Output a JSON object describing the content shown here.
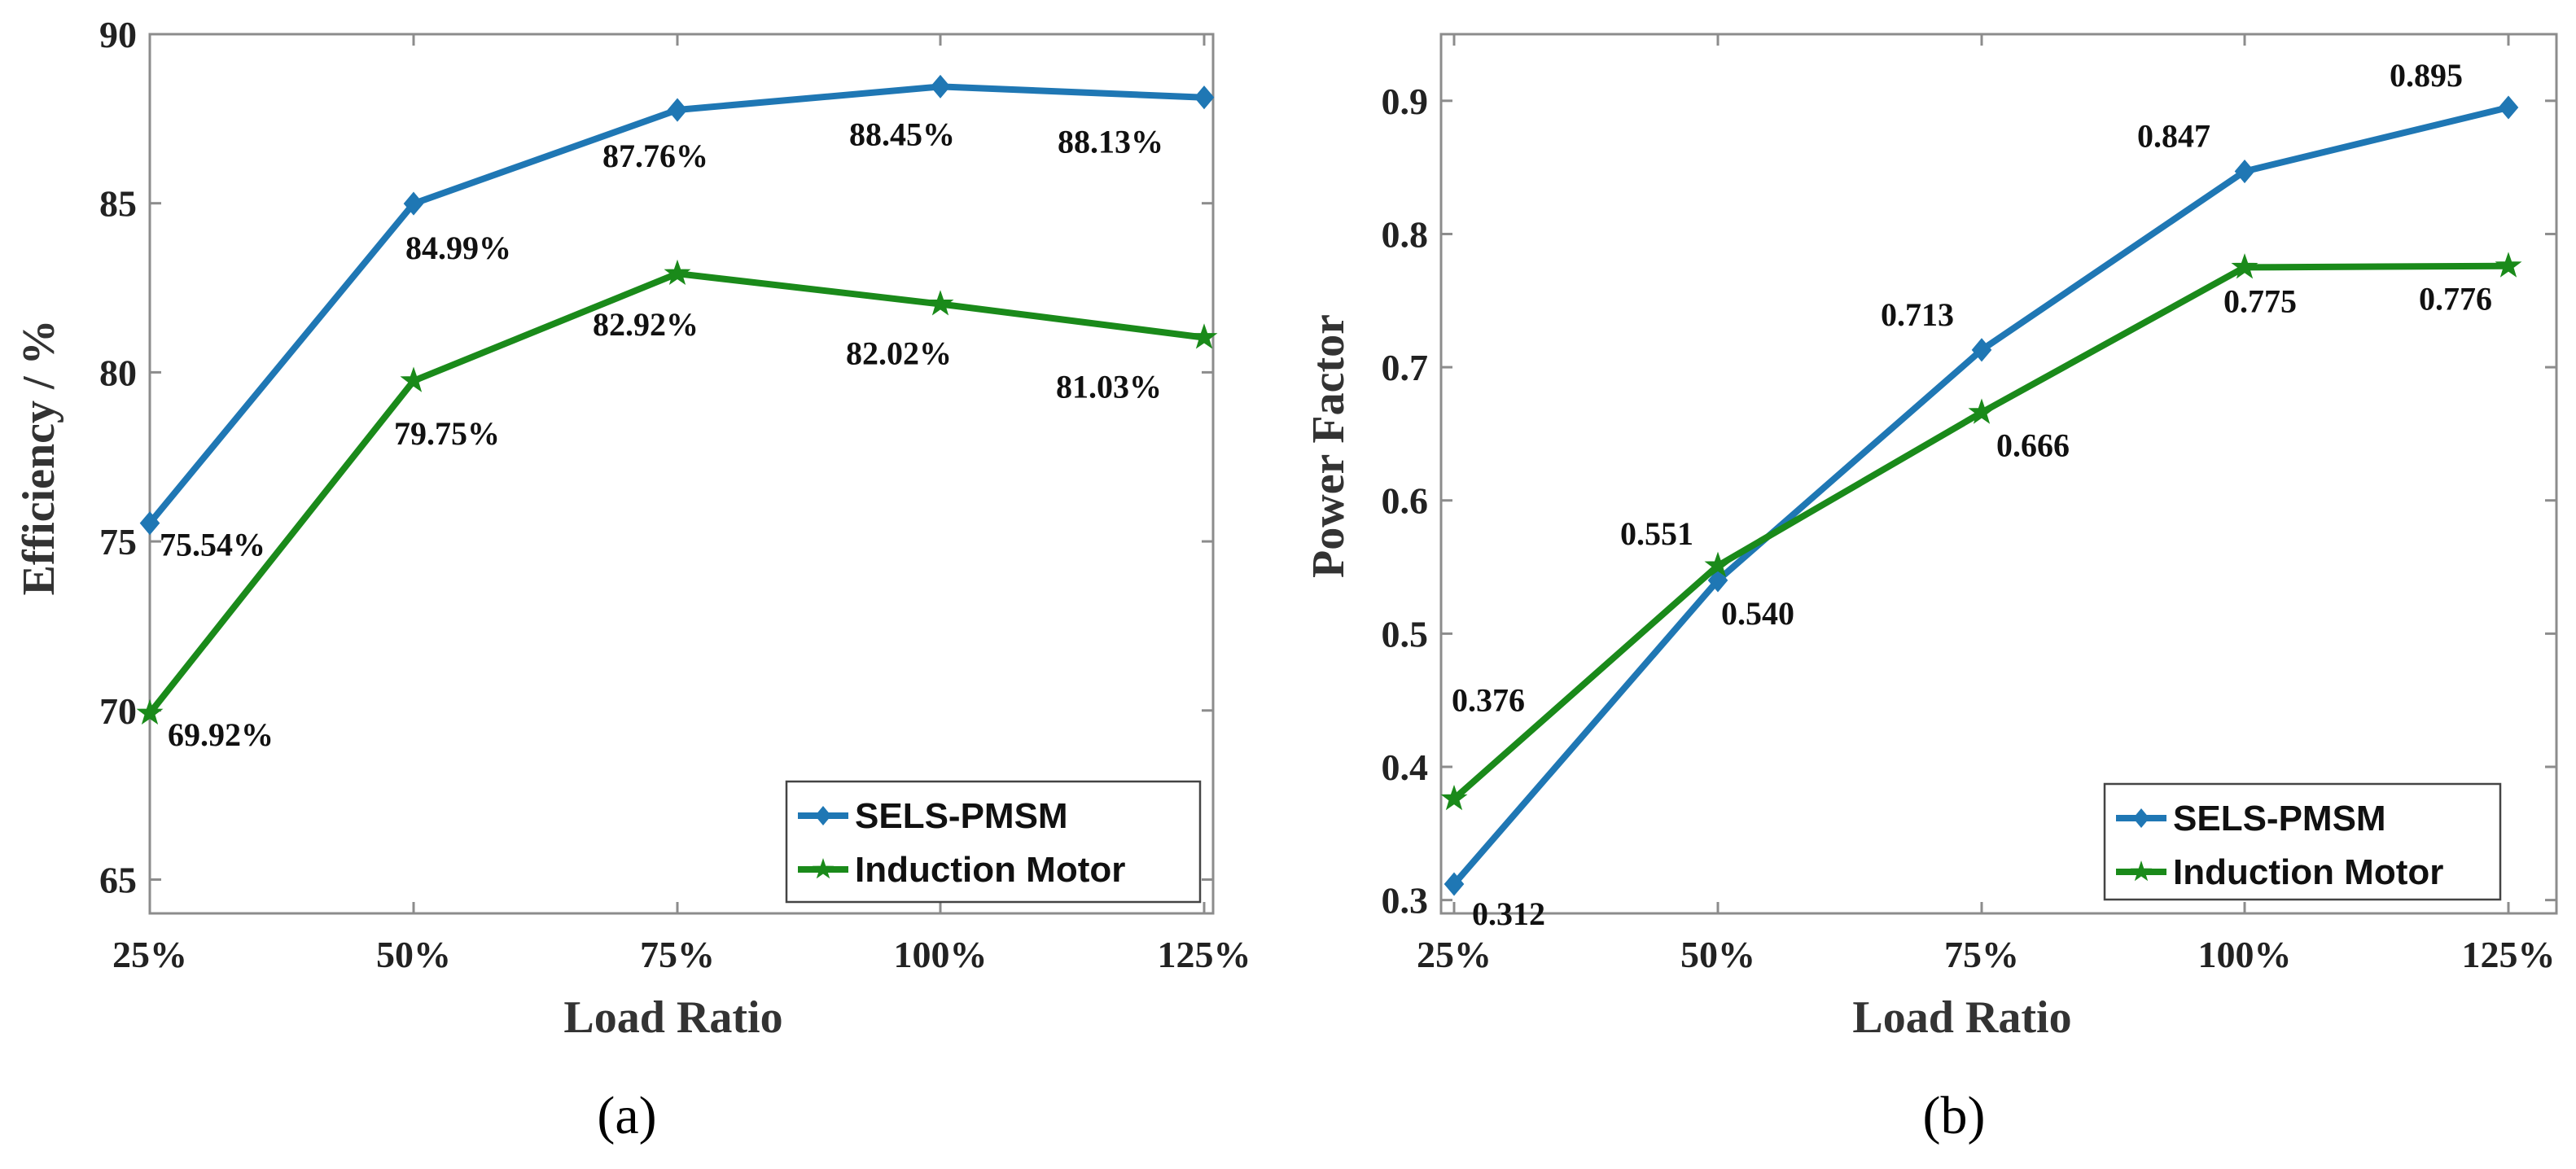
{
  "chart_data": [
    {
      "type": "line",
      "panel": "a",
      "caption": "(a)",
      "title": "",
      "xlabel": "Load Ratio",
      "ylabel": "Efficiency / %",
      "categories": [
        "25%",
        "50%",
        "75%",
        "100%",
        "125%"
      ],
      "ylim": [
        64,
        90
      ],
      "yticks": [
        65,
        70,
        75,
        80,
        85,
        90
      ],
      "yticklabels": [
        "65",
        "70",
        "75",
        "80",
        "85",
        "90"
      ],
      "grid": false,
      "legend_position": "bottom-right",
      "series": [
        {
          "name": "SELS-PMSM",
          "color": "#1f77b4",
          "marker": "diamond",
          "values": [
            75.54,
            84.99,
            87.76,
            88.45,
            88.13
          ],
          "labels": [
            "75.54%",
            "84.99%",
            "87.76%",
            "88.45%",
            "88.13%"
          ]
        },
        {
          "name": "Induction Motor",
          "color": "#1a8a1a",
          "marker": "star",
          "values": [
            69.92,
            79.75,
            82.92,
            82.02,
            81.03
          ],
          "labels": [
            "69.92%",
            "79.75%",
            "82.92%",
            "82.02%",
            "81.03%"
          ]
        }
      ]
    },
    {
      "type": "line",
      "panel": "b",
      "caption": "(b)",
      "title": "",
      "xlabel": "Load Ratio",
      "ylabel": "Power Factor",
      "categories": [
        "25%",
        "50%",
        "75%",
        "100%",
        "125%"
      ],
      "ylim": [
        0.29,
        0.95
      ],
      "yticks": [
        0.3,
        0.4,
        0.5,
        0.6,
        0.7,
        0.8,
        0.9
      ],
      "yticklabels": [
        "0.3",
        "0.4",
        "0.5",
        "0.6",
        "0.7",
        "0.8",
        "0.9"
      ],
      "grid": false,
      "legend_position": "bottom-right",
      "series": [
        {
          "name": "SELS-PMSM",
          "color": "#1f77b4",
          "marker": "diamond",
          "values": [
            0.312,
            0.54,
            0.713,
            0.847,
            0.895
          ],
          "labels": [
            "0.312",
            "0.540",
            "0.713",
            "0.847",
            "0.895"
          ]
        },
        {
          "name": "Induction Motor",
          "color": "#1a8a1a",
          "marker": "star",
          "values": [
            0.376,
            0.551,
            0.666,
            0.775,
            0.776
          ],
          "labels": [
            "0.376",
            "0.551",
            "0.666",
            "0.775",
            "0.776"
          ]
        }
      ]
    }
  ]
}
